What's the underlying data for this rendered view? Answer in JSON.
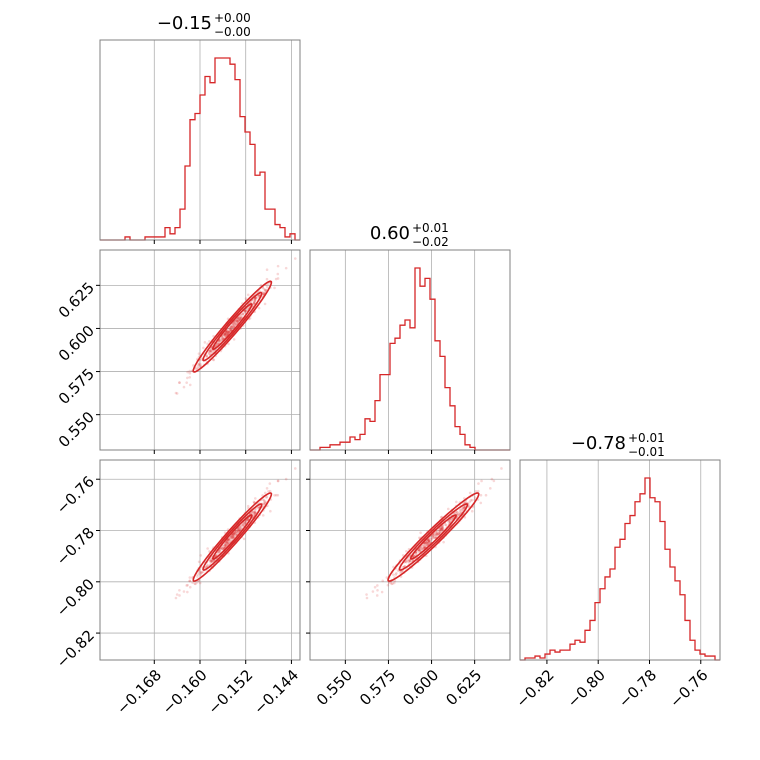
{
  "colors": {
    "series": "#d62728",
    "grid": "#b0b0b0",
    "frame": "#808080"
  },
  "chart_data": {
    "type": "corner",
    "grid": true,
    "parameters": [
      {
        "title": {
          "value": "−0.15",
          "plus": "+0.00",
          "minus": "−0.00"
        },
        "range": [
          -0.1775,
          -0.1425
        ],
        "ticks": [
          -0.168,
          -0.16,
          -0.152,
          -0.144
        ],
        "tick_labels": [
          "−0.168",
          "−0.160",
          "−0.152",
          "−0.144"
        ],
        "histogram": {
          "bin_start": -0.1775,
          "bin_width": 0.000875,
          "counts": [
            0,
            0,
            0,
            0,
            0,
            1,
            0,
            0,
            0,
            1,
            1,
            1,
            1,
            4,
            2,
            4,
            10,
            24,
            39,
            41,
            47,
            53,
            51,
            59,
            59,
            59,
            57,
            52,
            40,
            35,
            31,
            21,
            22,
            10,
            10,
            5,
            4,
            1,
            2,
            0
          ]
        }
      },
      {
        "title": {
          "value": "0.60",
          "plus": "+0.01",
          "minus": "−0.02"
        },
        "range": [
          0.5295,
          0.6455
        ],
        "ticks": [
          0.55,
          0.575,
          0.6,
          0.625
        ],
        "tick_labels": [
          "0.550",
          "0.575",
          "0.600",
          "0.625"
        ],
        "histogram": {
          "bin_start": 0.5295,
          "bin_width": 0.0029,
          "counts": [
            0,
            0,
            1,
            1,
            2,
            2,
            3,
            3,
            5,
            4,
            6,
            12,
            11,
            19,
            29,
            29,
            41,
            43,
            48,
            50,
            47,
            70,
            63,
            66,
            58,
            42,
            36,
            24,
            17,
            9,
            6,
            2,
            1,
            0,
            0,
            0,
            0,
            0,
            0,
            0
          ]
        }
      },
      {
        "title": {
          "value": "−0.78",
          "plus": "+0.01",
          "minus": "−0.01"
        },
        "range": [
          -0.8305,
          -0.7525
        ],
        "ticks": [
          -0.82,
          -0.8,
          -0.78,
          -0.76
        ],
        "tick_labels": [
          "−0.82",
          "−0.80",
          "−0.78",
          "−0.76"
        ],
        "histogram": {
          "bin_start": -0.8305,
          "bin_width": 0.00195,
          "counts": [
            0,
            1,
            1,
            2,
            1,
            3,
            5,
            4,
            5,
            5,
            8,
            10,
            9,
            15,
            20,
            29,
            36,
            42,
            46,
            57,
            61,
            69,
            73,
            80,
            84,
            92,
            82,
            80,
            70,
            56,
            47,
            40,
            33,
            20,
            10,
            5,
            3,
            2,
            2,
            0
          ]
        }
      }
    ],
    "panels": [
      {
        "x_param": 0,
        "y_param": 1,
        "type": "contour_scatter"
      },
      {
        "x_param": 0,
        "y_param": 2,
        "type": "contour_scatter"
      },
      {
        "x_param": 1,
        "y_param": 2,
        "type": "contour_scatter"
      }
    ]
  }
}
